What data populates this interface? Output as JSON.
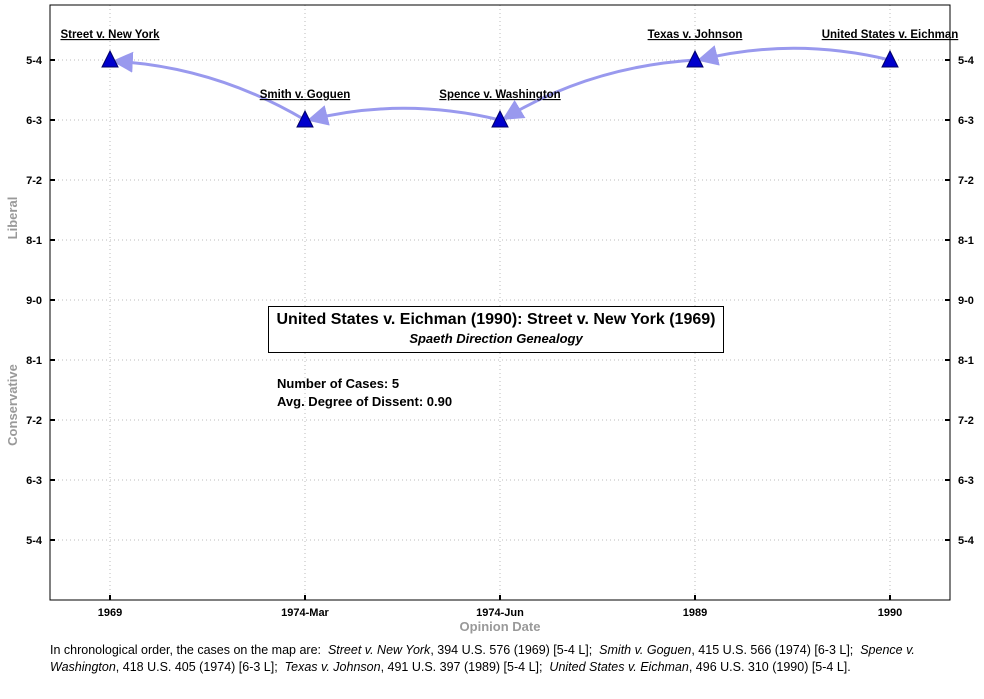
{
  "chart_data": {
    "type": "line",
    "title": "United States v. Eichman (1990): Street v. New York (1969)",
    "subtitle": "Spaeth Direction Genealogy",
    "xlabel": "Opinion Date",
    "y_group_labels": {
      "upper": "Liberal",
      "lower": "Conservative"
    },
    "x_categories": [
      "1969",
      "1974-Mar",
      "1974-Jun",
      "1989",
      "1990"
    ],
    "y_tick_labels": [
      "5-4",
      "6-3",
      "7-2",
      "8-1",
      "9-0",
      "8-1",
      "7-2",
      "6-3",
      "5-4"
    ],
    "y_direction": "top of axis = Liberal 5-4, center = 9-0, bottom = Conservative 5-4",
    "grid": true,
    "marker": "triangle",
    "marker_color": "#0000cc",
    "arrow_color": "#9999ee",
    "points": [
      {
        "label": "Street v. New York",
        "x": "1969",
        "y": "5-4",
        "direction": "Liberal"
      },
      {
        "label": "Smith v. Goguen",
        "x": "1974-Mar",
        "y": "6-3",
        "direction": "Liberal"
      },
      {
        "label": "Spence v. Washington",
        "x": "1974-Jun",
        "y": "6-3",
        "direction": "Liberal"
      },
      {
        "label": "Texas v. Johnson",
        "x": "1989",
        "y": "5-4",
        "direction": "Liberal"
      },
      {
        "label": "United States v. Eichman",
        "x": "1990",
        "y": "5-4",
        "direction": "Liberal"
      }
    ],
    "arrows": [
      {
        "from": "Smith v. Goguen",
        "to": "Street v. New York"
      },
      {
        "from": "Spence v. Washington",
        "to": "Smith v. Goguen"
      },
      {
        "from": "Texas v. Johnson",
        "to": "Spence v. Washington"
      },
      {
        "from": "United States v. Eichman",
        "to": "Texas v. Johnson"
      }
    ]
  },
  "stats": {
    "cases": "Number of Cases: 5",
    "dissent": "Avg. Degree of Dissent: 0.90"
  },
  "caption": {
    "intro": "In chronological order, the cases on the map are:",
    "cases": [
      {
        "name": "Street v. New York",
        "cite": ", 394 U.S. 576 (1969) [5-4 L];"
      },
      {
        "name": "Smith v. Goguen",
        "cite": ", 415 U.S. 566 (1974) [6-3 L];"
      },
      {
        "name": "Spence v. Washington",
        "cite": ", 418 U.S. 405 (1974) [6-3 L];"
      },
      {
        "name": "Texas v. Johnson",
        "cite": ", 491 U.S. 397 (1989) [5-4 L];"
      },
      {
        "name": "United States v. Eichman",
        "cite": ", 496 U.S. 310 (1990) [5-4 L]."
      }
    ]
  }
}
